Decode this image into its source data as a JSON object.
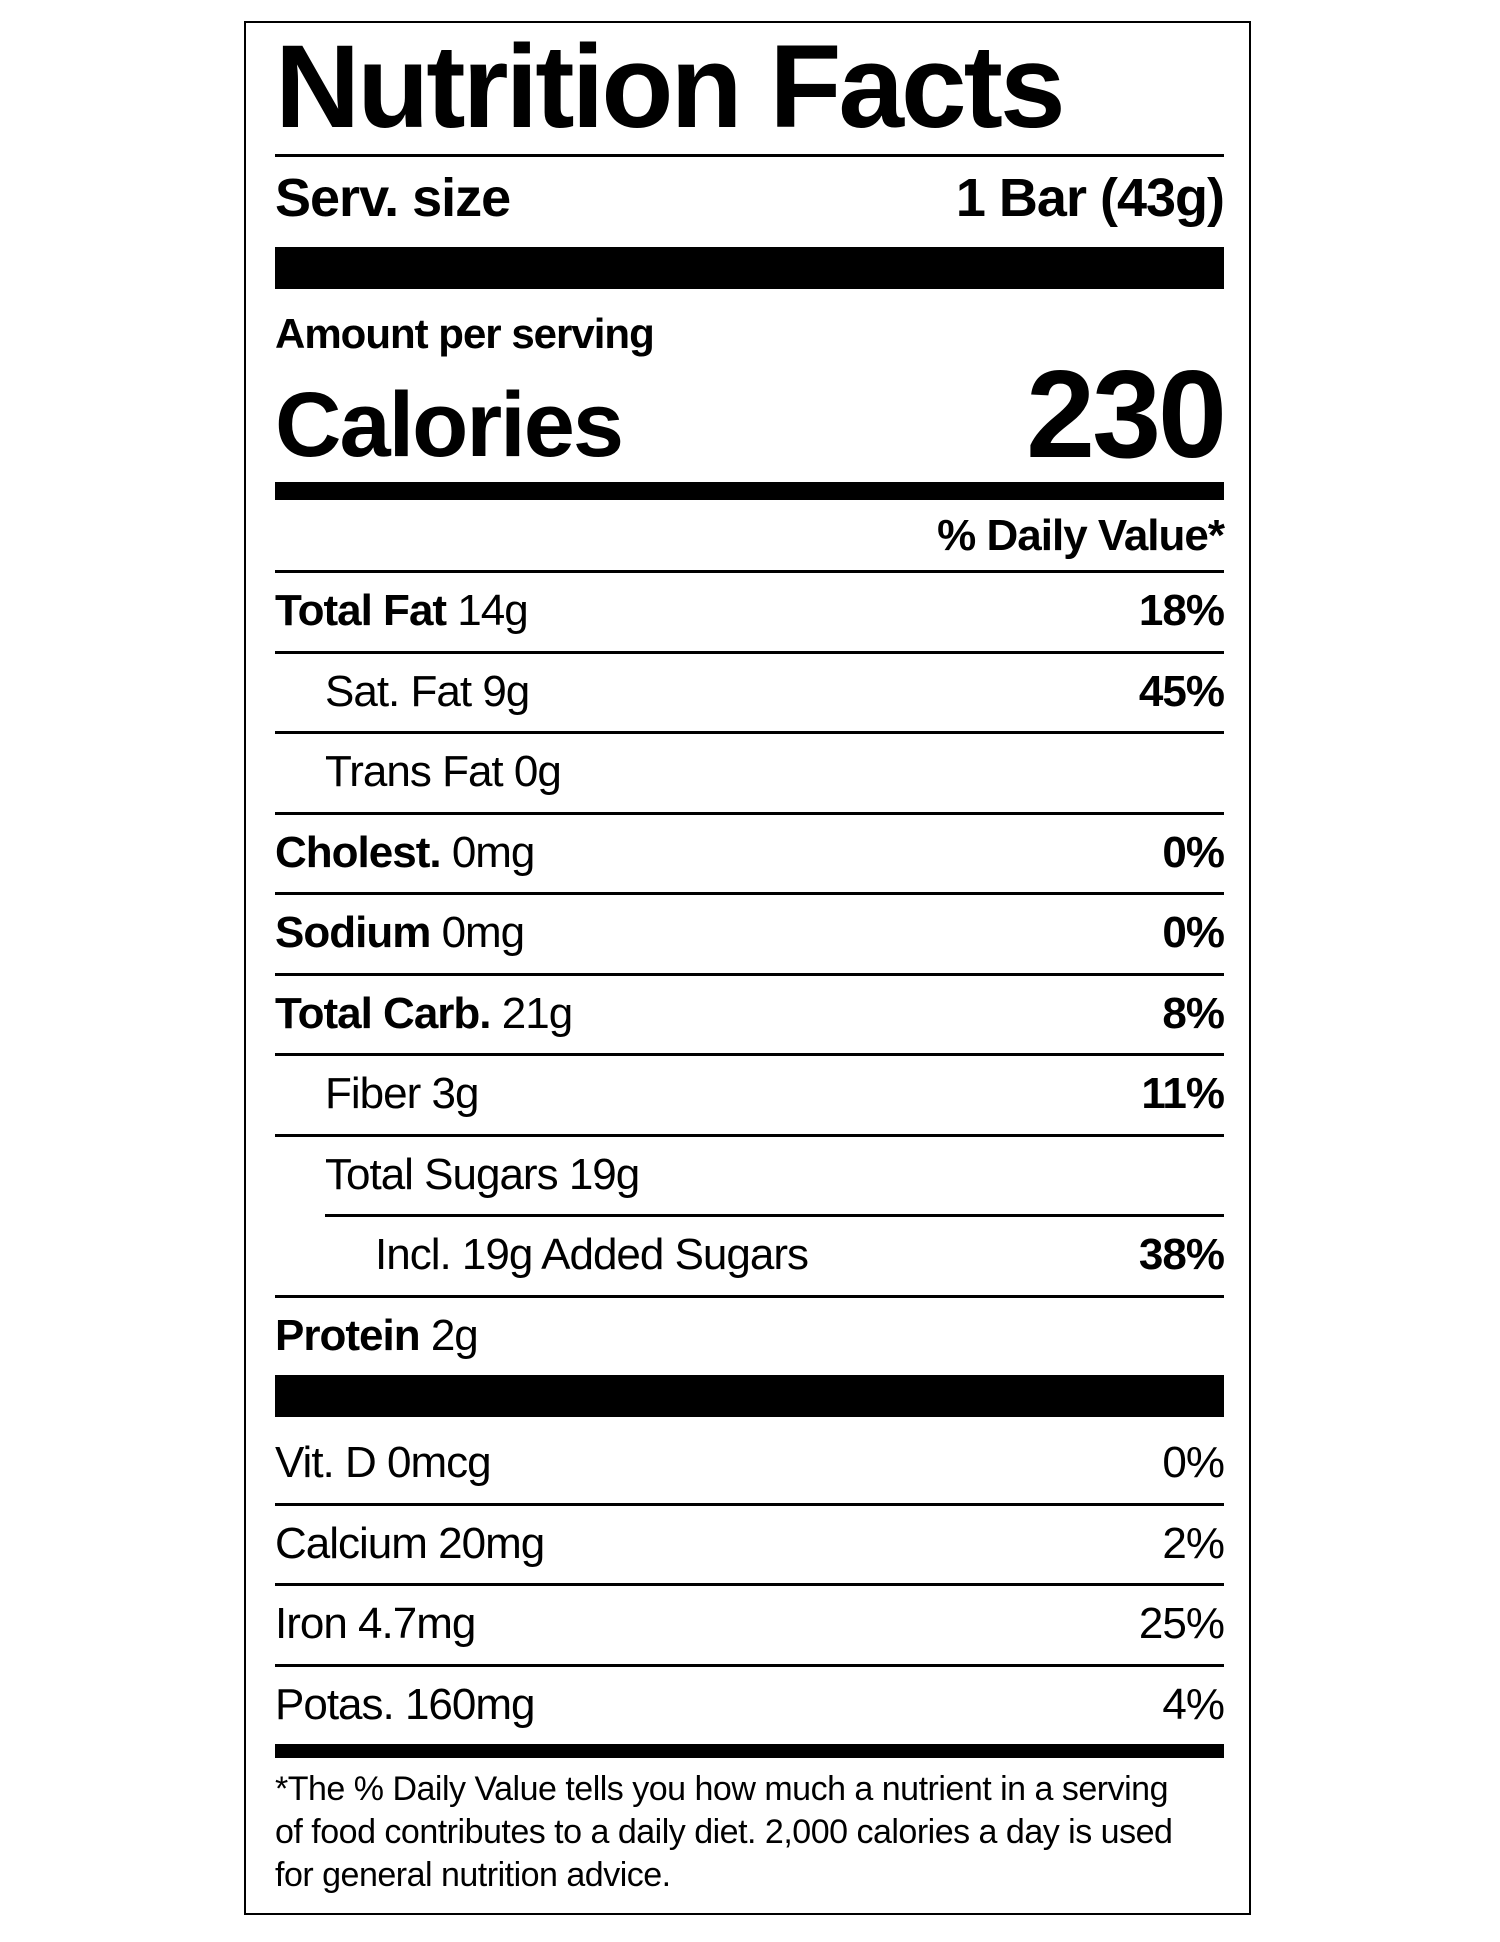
{
  "title": "Nutrition Facts",
  "serving": {
    "label": "Serv. size",
    "value": "1 Bar (43g)"
  },
  "amount_per_serving": "Amount per serving",
  "calories": {
    "label": "Calories",
    "value": "230"
  },
  "daily_value_header": "% Daily Value*",
  "nutrients": [
    {
      "name": "Total Fat",
      "amount": "14g",
      "dv": "18%"
    },
    {
      "name": "Sat. Fat",
      "amount": "9g",
      "dv": "45%"
    },
    {
      "name": "Trans Fat",
      "amount": "0g",
      "dv": ""
    },
    {
      "name": "Cholest.",
      "amount": "0mg",
      "dv": "0%"
    },
    {
      "name": "Sodium",
      "amount": "0mg",
      "dv": "0%"
    },
    {
      "name": "Total Carb.",
      "amount": "21g",
      "dv": "8%"
    },
    {
      "name": "Fiber",
      "amount": "3g",
      "dv": "11%"
    },
    {
      "name": "Total Sugars",
      "amount": "19g",
      "dv": ""
    },
    {
      "name": "Incl. 19g Added Sugars",
      "amount": "",
      "dv": "38%"
    },
    {
      "name": "Protein",
      "amount": "2g",
      "dv": ""
    }
  ],
  "vitamins": [
    {
      "name": "Vit. D 0mcg",
      "dv": "0%"
    },
    {
      "name": "Calcium 20mg",
      "dv": "2%"
    },
    {
      "name": "Iron 4.7mg",
      "dv": "25%"
    },
    {
      "name": "Potas. 160mg",
      "dv": "4%"
    }
  ],
  "footnote": [
    "*The % Daily Value tells you how much a nutrient in a serving",
    "of food contributes to a daily diet. 2,000 calories a day is used",
    "for general nutrition advice."
  ]
}
